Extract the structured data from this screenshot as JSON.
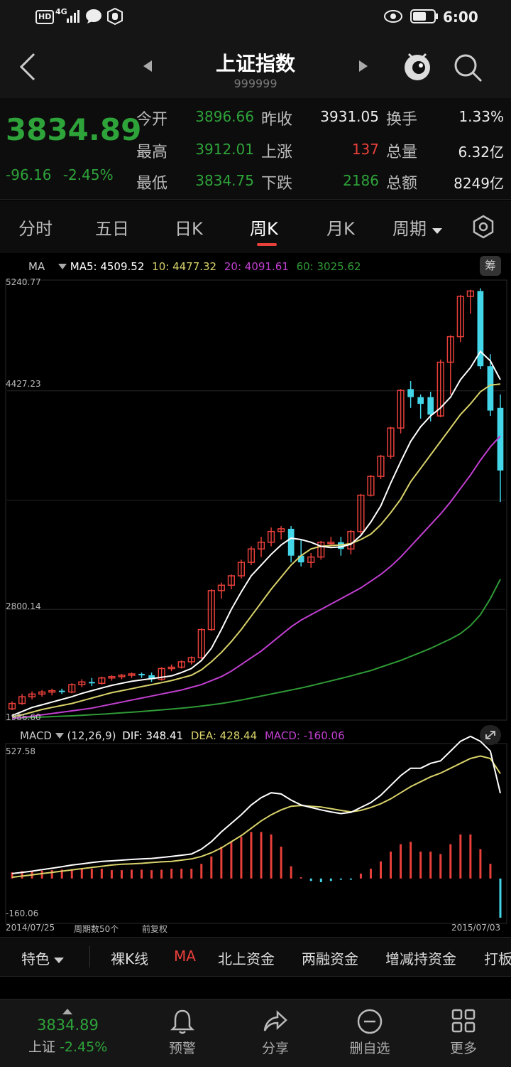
{
  "status_bar": {
    "hd": "HD",
    "net": "4G",
    "time": "6:00"
  },
  "nav": {
    "title": "上证指数",
    "code": "999999"
  },
  "quote": {
    "price": "3834.89",
    "change": "-96.16",
    "change_pct": "-2.45%",
    "rows": [
      [
        {
          "label": "今开",
          "value": "3896.66"
        },
        {
          "label": "昨收",
          "value": "3931.05"
        },
        {
          "label": "换手",
          "value": "1.33%"
        }
      ],
      [
        {
          "label": "最高",
          "value": "3912.01"
        },
        {
          "label": "上涨",
          "value": "137"
        },
        {
          "label": "总量",
          "value": "6.32亿"
        }
      ],
      [
        {
          "label": "最低",
          "value": "3834.75"
        },
        {
          "label": "下跌",
          "value": "2186"
        },
        {
          "label": "总额",
          "value": "8249亿"
        }
      ]
    ]
  },
  "tabs": [
    "分时",
    "五日",
    "日K",
    "周K",
    "月K",
    "周期"
  ],
  "active_tab": "周K",
  "chart": {
    "ma_legend": {
      "name": "MA",
      "ma5": "MA5: 4509.52",
      "ma10": "10: 4477.32",
      "ma20": "20: 4091.61",
      "ma60": "60: 3025.62"
    },
    "right_badge": "筹",
    "y_labels": [
      "5240.77",
      "4427.23",
      "2800.14",
      "1986.60"
    ],
    "macd_legend": {
      "name": "MACD",
      "params": "(12,26,9)",
      "dif": "DIF: 348.41",
      "dea": "DEA: 428.44",
      "macd": "MACD: -160.06"
    },
    "macd_y_labels": [
      "527.58",
      "-160.06"
    ],
    "x_start": "2014/07/25",
    "x_end": "2015/07/03",
    "period_count": "周期数50个",
    "adjust": "前复权",
    "colors": {
      "up": "#e8403a",
      "down": "#43d5e8",
      "ma5": "#ffffff",
      "ma10": "#d9d36a",
      "ma20": "#c23fd1",
      "ma60": "#2f9a36",
      "dif": "#ffffff",
      "dea": "#d9d36a"
    }
  },
  "chart_data": {
    "type": "candlestick",
    "ylim": [
      1986.6,
      5240.77
    ],
    "candles": [
      [
        2060,
        2100,
        2050,
        2115
      ],
      [
        2100,
        2150,
        2090,
        2170
      ],
      [
        2150,
        2170,
        2130,
        2190
      ],
      [
        2170,
        2185,
        2150,
        2200
      ],
      [
        2185,
        2195,
        2160,
        2210
      ],
      [
        2195,
        2185,
        2170,
        2210
      ],
      [
        2185,
        2240,
        2175,
        2250
      ],
      [
        2240,
        2260,
        2220,
        2280
      ],
      [
        2260,
        2250,
        2230,
        2290
      ],
      [
        2250,
        2290,
        2240,
        2300
      ],
      [
        2290,
        2300,
        2270,
        2310
      ],
      [
        2300,
        2310,
        2280,
        2320
      ],
      [
        2310,
        2320,
        2290,
        2330
      ],
      [
        2320,
        2310,
        2290,
        2330
      ],
      [
        2310,
        2280,
        2260,
        2330
      ],
      [
        2280,
        2360,
        2270,
        2370
      ],
      [
        2360,
        2370,
        2340,
        2390
      ],
      [
        2370,
        2410,
        2360,
        2420
      ],
      [
        2410,
        2440,
        2390,
        2450
      ],
      [
        2440,
        2650,
        2430,
        2660
      ],
      [
        2650,
        2940,
        2640,
        2950
      ],
      [
        2940,
        2980,
        2880,
        3000
      ],
      [
        2980,
        3050,
        2950,
        3060
      ],
      [
        3050,
        3150,
        3030,
        3170
      ],
      [
        3150,
        3250,
        3130,
        3270
      ],
      [
        3250,
        3300,
        3190,
        3340
      ],
      [
        3300,
        3380,
        3270,
        3410
      ],
      [
        3380,
        3400,
        3320,
        3420
      ],
      [
        3400,
        3200,
        3150,
        3420
      ],
      [
        3200,
        3150,
        3120,
        3320
      ],
      [
        3150,
        3190,
        3110,
        3220
      ],
      [
        3190,
        3300,
        3170,
        3310
      ],
      [
        3300,
        3300,
        3270,
        3340
      ],
      [
        3300,
        3250,
        3200,
        3340
      ],
      [
        3250,
        3380,
        3210,
        3390
      ],
      [
        3380,
        3650,
        3360,
        3660
      ],
      [
        3650,
        3790,
        3640,
        3800
      ],
      [
        3790,
        3940,
        3770,
        3950
      ],
      [
        3940,
        4150,
        3920,
        4160
      ],
      [
        4150,
        4430,
        4110,
        4440
      ],
      [
        4440,
        4380,
        4300,
        4500
      ],
      [
        4380,
        4330,
        4220,
        4400
      ],
      [
        4380,
        4250,
        4200,
        4420
      ],
      [
        4240,
        4640,
        4230,
        4660
      ],
      [
        4640,
        4830,
        4400,
        4840
      ],
      [
        4830,
        5130,
        4790,
        5140
      ],
      [
        5130,
        5170,
        5000,
        5180
      ],
      [
        5170,
        4610,
        4590,
        5190
      ],
      [
        4610,
        4280,
        4240,
        4700
      ],
      [
        4300,
        3834,
        3600,
        4400
      ]
    ],
    "ma": {
      "ma5": [
        2010,
        2040,
        2070,
        2090,
        2110,
        2130,
        2150,
        2175,
        2195,
        2215,
        2235,
        2250,
        2265,
        2275,
        2285,
        2295,
        2305,
        2330,
        2360,
        2420,
        2510,
        2650,
        2800,
        2930,
        3050,
        3130,
        3210,
        3280,
        3330,
        3320,
        3300,
        3270,
        3260,
        3265,
        3285,
        3350,
        3450,
        3570,
        3740,
        3900,
        4050,
        4160,
        4240,
        4300,
        4380,
        4510,
        4600,
        4720,
        4650,
        4510
      ],
      "ma10": [
        2000,
        2015,
        2035,
        2055,
        2070,
        2085,
        2100,
        2120,
        2140,
        2160,
        2180,
        2195,
        2210,
        2225,
        2240,
        2255,
        2270,
        2290,
        2310,
        2350,
        2410,
        2480,
        2560,
        2650,
        2750,
        2850,
        2950,
        3040,
        3130,
        3200,
        3250,
        3270,
        3275,
        3280,
        3290,
        3320,
        3360,
        3430,
        3520,
        3620,
        3750,
        3850,
        3950,
        4050,
        4150,
        4250,
        4330,
        4420,
        4470,
        4477
      ],
      "ma20": [
        1990,
        1995,
        2005,
        2015,
        2025,
        2035,
        2045,
        2055,
        2065,
        2080,
        2095,
        2110,
        2125,
        2140,
        2155,
        2170,
        2185,
        2200,
        2220,
        2240,
        2270,
        2300,
        2340,
        2390,
        2440,
        2490,
        2550,
        2610,
        2670,
        2720,
        2760,
        2800,
        2840,
        2880,
        2920,
        2960,
        3010,
        3060,
        3120,
        3190,
        3270,
        3350,
        3430,
        3510,
        3600,
        3700,
        3800,
        3910,
        4010,
        4091
      ],
      "ma60": [
        1990,
        1993,
        1996,
        1999,
        2002,
        2005,
        2008,
        2012,
        2016,
        2020,
        2025,
        2030,
        2035,
        2040,
        2046,
        2052,
        2058,
        2065,
        2072,
        2080,
        2090,
        2100,
        2112,
        2125,
        2140,
        2155,
        2170,
        2185,
        2200,
        2215,
        2232,
        2250,
        2268,
        2286,
        2305,
        2325,
        2345,
        2370,
        2395,
        2420,
        2450,
        2480,
        2510,
        2545,
        2580,
        2620,
        2680,
        2760,
        2880,
        3025
      ]
    },
    "macd": {
      "ylim": [
        -160.06,
        527.58
      ],
      "dif": [
        20,
        25,
        30,
        36,
        42,
        48,
        55,
        60,
        65,
        70,
        72,
        75,
        78,
        80,
        82,
        86,
        90,
        95,
        100,
        120,
        150,
        190,
        225,
        260,
        300,
        330,
        350,
        345,
        320,
        300,
        290,
        280,
        272,
        265,
        270,
        290,
        310,
        340,
        380,
        420,
        450,
        450,
        470,
        480,
        520,
        560,
        580,
        560,
        520,
        348
      ],
      "dea": [
        5,
        10,
        15,
        20,
        25,
        30,
        35,
        40,
        45,
        50,
        55,
        58,
        60,
        62,
        65,
        68,
        70,
        75,
        80,
        90,
        105,
        125,
        150,
        175,
        205,
        235,
        260,
        280,
        295,
        298,
        295,
        292,
        285,
        278,
        272,
        278,
        290,
        305,
        325,
        350,
        375,
        395,
        415,
        430,
        450,
        470,
        490,
        500,
        490,
        428
      ],
      "hist": [
        25,
        30,
        30,
        32,
        34,
        36,
        38,
        40,
        40,
        40,
        34,
        34,
        36,
        36,
        34,
        36,
        40,
        40,
        40,
        60,
        90,
        130,
        150,
        170,
        190,
        190,
        180,
        130,
        50,
        5,
        -10,
        -15,
        -10,
        -5,
        -5,
        20,
        40,
        70,
        110,
        140,
        150,
        110,
        110,
        100,
        140,
        180,
        180,
        120,
        60,
        -160
      ]
    }
  },
  "toolbar": {
    "special": "特色",
    "items": [
      "裸K线",
      "MA",
      "北上资金",
      "两融资金",
      "增减持资金",
      "打板"
    ],
    "active": "MA"
  },
  "tabbar": {
    "price": "3834.89",
    "index_label": "上证",
    "index_pct": "-2.45%",
    "items": [
      {
        "label": "预警"
      },
      {
        "label": "分享"
      },
      {
        "label": "删自选"
      },
      {
        "label": "更多"
      }
    ]
  }
}
